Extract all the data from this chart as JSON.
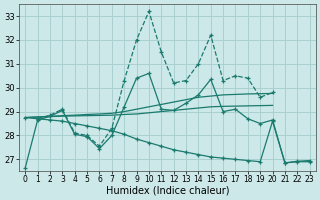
{
  "background_color": "#cce8e8",
  "grid_color": "#aad0d0",
  "line_color": "#1a7a6e",
  "xlabel": "Humidex (Indice chaleur)",
  "xlim": [
    -0.5,
    23.5
  ],
  "ylim": [
    26.5,
    33.5
  ],
  "yticks": [
    27,
    28,
    29,
    30,
    31,
    32,
    33
  ],
  "xticks": [
    0,
    1,
    2,
    3,
    4,
    5,
    6,
    7,
    8,
    9,
    10,
    11,
    12,
    13,
    14,
    15,
    16,
    17,
    18,
    19,
    20,
    21,
    22,
    23
  ],
  "lines": [
    {
      "x": [
        1,
        2,
        3,
        4,
        5,
        6,
        7,
        8,
        9,
        10,
        11,
        12,
        13,
        14,
        15,
        16,
        17,
        18,
        19,
        20
      ],
      "y": [
        28.7,
        28.85,
        29.1,
        28.1,
        28.0,
        27.55,
        28.3,
        30.3,
        32.0,
        33.2,
        31.5,
        30.2,
        30.3,
        31.0,
        32.2,
        30.3,
        30.5,
        30.4,
        29.6,
        29.8
      ],
      "marker": "+",
      "linestyle": "--"
    },
    {
      "x": [
        0,
        1,
        2,
        3,
        4,
        5,
        6,
        7,
        8,
        9,
        10,
        11,
        12,
        13,
        14,
        15,
        16,
        17,
        18,
        19,
        20
      ],
      "y": [
        28.75,
        28.78,
        28.8,
        28.83,
        28.85,
        28.88,
        28.9,
        28.93,
        29.0,
        29.1,
        29.2,
        29.3,
        29.4,
        29.5,
        29.6,
        29.65,
        29.7,
        29.72,
        29.74,
        29.75,
        29.76
      ],
      "marker": null,
      "linestyle": "-"
    },
    {
      "x": [
        0,
        1,
        2,
        3,
        4,
        5,
        6,
        7,
        8,
        9,
        10,
        11,
        12,
        13,
        14,
        15,
        16,
        17,
        18,
        19,
        20
      ],
      "y": [
        28.75,
        28.77,
        28.79,
        28.81,
        28.82,
        28.83,
        28.84,
        28.85,
        28.88,
        28.9,
        28.95,
        29.0,
        29.05,
        29.1,
        29.15,
        29.2,
        29.22,
        29.23,
        29.24,
        29.25,
        29.26
      ],
      "marker": null,
      "linestyle": "-"
    },
    {
      "x": [
        0,
        1,
        2,
        3,
        4,
        5,
        6,
        7,
        8,
        9,
        10,
        11,
        12,
        13,
        14,
        15,
        16,
        17,
        18,
        19,
        20,
        21,
        22,
        23
      ],
      "y": [
        28.75,
        28.7,
        28.65,
        28.6,
        28.5,
        28.4,
        28.3,
        28.2,
        28.05,
        27.85,
        27.7,
        27.55,
        27.4,
        27.3,
        27.2,
        27.1,
        27.05,
        27.0,
        26.95,
        26.9,
        28.6,
        26.85,
        26.9,
        26.9
      ],
      "marker": "+",
      "linestyle": "-"
    },
    {
      "x": [
        0,
        1,
        2,
        3,
        4,
        5,
        6,
        7,
        8,
        9,
        10,
        11,
        12,
        13,
        14,
        15,
        16,
        17,
        18,
        19,
        20,
        21,
        22,
        23
      ],
      "y": [
        26.65,
        28.65,
        28.8,
        29.05,
        28.05,
        27.95,
        27.45,
        28.0,
        29.2,
        30.4,
        30.6,
        29.1,
        29.05,
        29.35,
        29.7,
        30.35,
        29.0,
        29.1,
        28.7,
        28.5,
        28.65,
        26.85,
        26.92,
        26.95
      ],
      "marker": "+",
      "linestyle": "-"
    }
  ]
}
